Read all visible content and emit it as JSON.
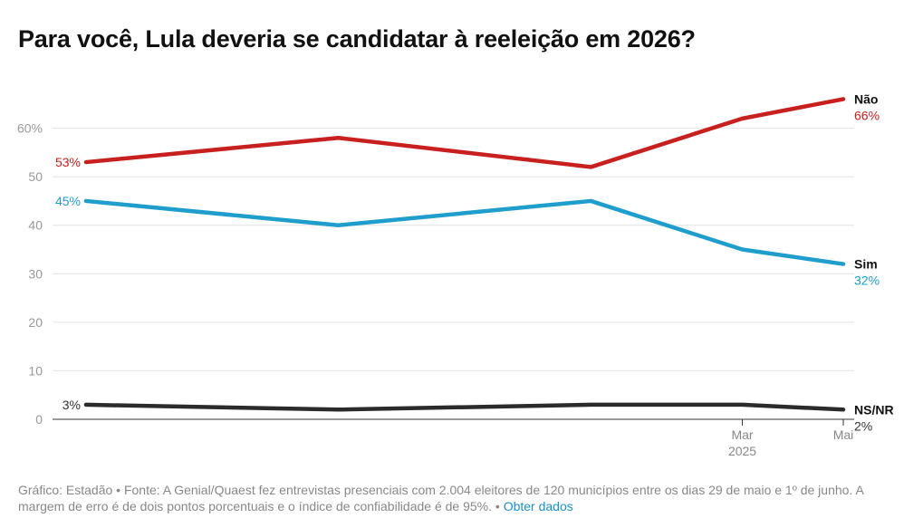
{
  "chart_data": {
    "type": "line",
    "title": "Para você, Lula deveria se candidatar à reeleição em 2026?",
    "xlabel": "",
    "ylabel": "",
    "ylim": [
      0,
      70
    ],
    "y_ticks": [
      {
        "value": 0,
        "label": "0"
      },
      {
        "value": 10,
        "label": "10"
      },
      {
        "value": 20,
        "label": "20"
      },
      {
        "value": 30,
        "label": "30"
      },
      {
        "value": 40,
        "label": "40"
      },
      {
        "value": 50,
        "label": "50"
      },
      {
        "value": 60,
        "label": "60%"
      }
    ],
    "x": [
      "2024-02",
      "2024-07",
      "2024-12",
      "2025-03",
      "2025-05"
    ],
    "x_ticks": [
      {
        "x": "2025-03",
        "label": "Mar",
        "sublabel": "2025"
      },
      {
        "x": "2025-05",
        "label": "Mai",
        "sublabel": ""
      }
    ],
    "grid": true,
    "series": [
      {
        "name": "Não",
        "color": "#c8201f",
        "values": [
          53,
          58,
          52,
          62,
          66
        ],
        "start_label": "53%",
        "end_label": "66%"
      },
      {
        "name": "Sim",
        "color": "#1f9dcd",
        "values": [
          45,
          40,
          45,
          35,
          32
        ],
        "start_label": "45%",
        "end_label": "32%"
      },
      {
        "name": "NS/NR",
        "color": "#2b2b2b",
        "values": [
          3,
          2,
          3,
          3,
          2
        ],
        "start_label": "3%",
        "end_label": "2%"
      }
    ]
  },
  "footer": {
    "text": "Gráfico: Estadão • Fonte: A Genial/Quaest fez entrevistas presenciais com 2.004 eleitores de 120 municípios entre os dias 29 de maio e 1º de junho. A margem de erro é de dois pontos porcentuais e o índice de confiabilidade é de 95%. •",
    "link_label": "Obter dados"
  }
}
